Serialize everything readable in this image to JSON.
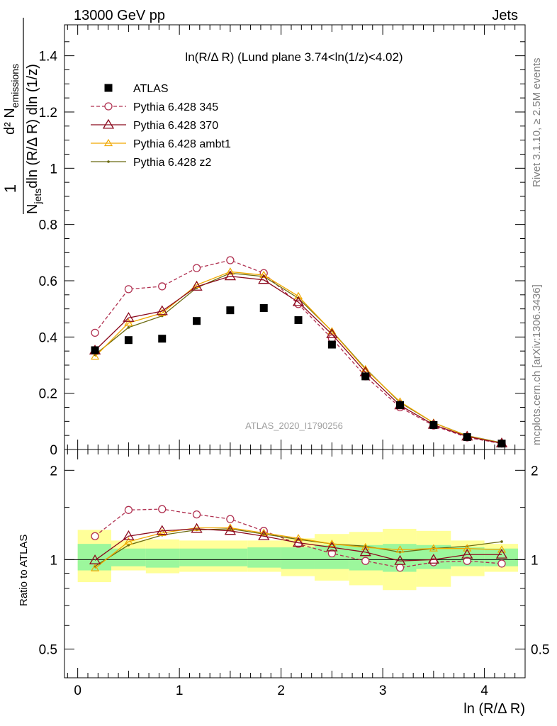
{
  "header": {
    "left": "13000 GeV pp",
    "right": "Jets"
  },
  "side_text": {
    "rivet": "Rivet 3.1.10, ≥ 2.5M events",
    "mcplots": "mcplots.cern.ch [arXiv:1306.3436]"
  },
  "watermark": "ATLAS_2020_I1790256",
  "colors": {
    "atlas": "#000000",
    "p345": "#b03050",
    "p370": "#8b0a1e",
    "ambt1": "#f0a800",
    "z2": "#6b6b10",
    "band_inner": "#9cf79c",
    "band_outer": "#ffff99"
  },
  "chart_data": [
    {
      "type": "line",
      "title": "ln(R/Δ R) (Lund plane 3.74<ln(1/z)<4.02)",
      "ylabel_prefix": "1",
      "ylabel_num": "d² N",
      "ylabel_num_sub": "emissions",
      "ylabel_den": "N",
      "ylabel_den_sub": "jets",
      "ylabel_den_rest": "dln (R/Δ R) dln (1/z)",
      "xlim": [
        -0.13,
        4.4
      ],
      "ylim": [
        0,
        1.51
      ],
      "yticks": [
        {
          "v": 0,
          "label": "0"
        },
        {
          "v": 0.2,
          "label": "0.2"
        },
        {
          "v": 0.4,
          "label": "0.4"
        },
        {
          "v": 0.6,
          "label": "0.6"
        },
        {
          "v": 0.8,
          "label": "0.8"
        },
        {
          "v": 1.0,
          "label": "1"
        },
        {
          "v": 1.2,
          "label": "1.2"
        },
        {
          "v": 1.4,
          "label": "1.4"
        }
      ],
      "x": [
        0.17,
        0.5,
        0.83,
        1.17,
        1.5,
        1.83,
        2.17,
        2.5,
        2.83,
        3.17,
        3.5,
        3.83,
        4.17
      ],
      "series": [
        {
          "name": "ATLAS",
          "key": "atlas",
          "style": "square",
          "values": [
            0.353,
            0.389,
            0.394,
            0.457,
            0.495,
            0.503,
            0.46,
            0.373,
            0.26,
            0.158,
            0.087,
            0.044,
            0.021
          ]
        },
        {
          "name": "Pythia 6.428 345",
          "key": "p345",
          "style": "circle-dashed",
          "values": [
            0.415,
            0.57,
            0.58,
            0.645,
            0.673,
            0.627,
            0.517,
            0.395,
            0.26,
            0.15,
            0.085,
            0.043,
            0.021
          ]
        },
        {
          "name": "Pythia 6.428 370",
          "key": "p370",
          "style": "triangle",
          "values": [
            0.352,
            0.468,
            0.492,
            0.579,
            0.616,
            0.603,
            0.524,
            0.41,
            0.275,
            0.157,
            0.088,
            0.046,
            0.022
          ]
        },
        {
          "name": "Pythia 6.428 ambt1",
          "key": "ambt1",
          "style": "triangle-small",
          "values": [
            0.33,
            0.45,
            0.485,
            0.585,
            0.632,
            0.62,
            0.545,
            0.42,
            0.285,
            0.17,
            0.095,
            0.048,
            0.023
          ]
        },
        {
          "name": "Pythia 6.428 z2",
          "key": "z2",
          "style": "dot",
          "values": [
            0.337,
            0.434,
            0.475,
            0.575,
            0.627,
            0.615,
            0.538,
            0.421,
            0.288,
            0.167,
            0.095,
            0.049,
            0.024
          ]
        }
      ]
    },
    {
      "type": "line",
      "ylabel": "Ratio to ATLAS",
      "xlabel": "ln (R/Δ R)",
      "yscale": "log",
      "ylim": [
        0.4,
        2.35
      ],
      "yticks": [
        {
          "v": 0.5,
          "label": "0.5"
        },
        {
          "v": 1,
          "label": "1"
        },
        {
          "v": 2,
          "label": "2"
        }
      ],
      "xticks": [
        {
          "v": 0,
          "label": "0"
        },
        {
          "v": 1,
          "label": "1"
        },
        {
          "v": 2,
          "label": "2"
        },
        {
          "v": 3,
          "label": "3"
        },
        {
          "v": 4,
          "label": "4"
        }
      ],
      "bins": [
        0,
        0.33,
        0.67,
        1.0,
        1.33,
        1.67,
        2.0,
        2.33,
        2.67,
        3.0,
        3.33,
        3.67,
        4.0,
        4.33
      ],
      "band_inner": [
        [
          0.92,
          1.13
        ],
        [
          0.95,
          1.09
        ],
        [
          0.94,
          1.09
        ],
        [
          0.95,
          1.09
        ],
        [
          0.95,
          1.09
        ],
        [
          0.94,
          1.1
        ],
        [
          0.93,
          1.1
        ],
        [
          0.93,
          1.12
        ],
        [
          0.92,
          1.12
        ],
        [
          0.91,
          1.13
        ],
        [
          0.93,
          1.12
        ],
        [
          0.95,
          1.1
        ],
        [
          0.95,
          1.09
        ]
      ],
      "band_outer": [
        [
          0.84,
          1.26
        ],
        [
          0.92,
          1.16
        ],
        [
          0.9,
          1.17
        ],
        [
          0.91,
          1.16
        ],
        [
          0.91,
          1.16
        ],
        [
          0.91,
          1.16
        ],
        [
          0.88,
          1.18
        ],
        [
          0.85,
          1.22
        ],
        [
          0.82,
          1.24
        ],
        [
          0.79,
          1.27
        ],
        [
          0.81,
          1.25
        ],
        [
          0.88,
          1.16
        ],
        [
          0.91,
          1.13
        ]
      ],
      "x": [
        0.17,
        0.5,
        0.83,
        1.17,
        1.5,
        1.83,
        2.17,
        2.5,
        2.83,
        3.17,
        3.5,
        3.83,
        4.17
      ],
      "series": [
        {
          "key": "p345",
          "style": "circle-dashed",
          "values": [
            1.2,
            1.47,
            1.48,
            1.42,
            1.37,
            1.25,
            1.13,
            1.05,
            0.99,
            0.94,
            0.98,
            0.99,
            0.97
          ]
        },
        {
          "key": "p370",
          "style": "triangle",
          "values": [
            0.995,
            1.2,
            1.25,
            1.27,
            1.25,
            1.2,
            1.14,
            1.1,
            1.06,
            0.99,
            1.0,
            1.04,
            1.04
          ]
        },
        {
          "key": "ambt1",
          "style": "triangle-small",
          "values": [
            0.935,
            1.15,
            1.23,
            1.28,
            1.28,
            1.23,
            1.18,
            1.13,
            1.1,
            1.08,
            1.09,
            1.09,
            1.08
          ]
        },
        {
          "key": "z2",
          "style": "dot",
          "values": [
            0.95,
            1.12,
            1.21,
            1.26,
            1.27,
            1.22,
            1.17,
            1.13,
            1.11,
            1.06,
            1.09,
            1.11,
            1.15
          ]
        }
      ]
    }
  ]
}
